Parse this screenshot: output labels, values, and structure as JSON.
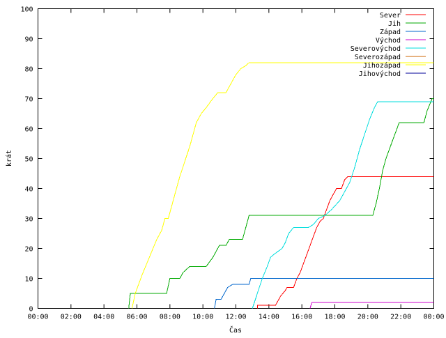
{
  "chart_data": {
    "type": "line",
    "title": "",
    "xlabel": "Čas",
    "ylabel": "krát",
    "xlim": [
      0,
      24
    ],
    "ylim": [
      0,
      100
    ],
    "grid": false,
    "legend_position": "top-right",
    "x_ticks": [
      {
        "value": 0,
        "label": "00:00"
      },
      {
        "value": 2,
        "label": "02:00"
      },
      {
        "value": 4,
        "label": "04:00"
      },
      {
        "value": 6,
        "label": "06:00"
      },
      {
        "value": 8,
        "label": "08:00"
      },
      {
        "value": 10,
        "label": "10:00"
      },
      {
        "value": 12,
        "label": "12:00"
      },
      {
        "value": 14,
        "label": "14:00"
      },
      {
        "value": 16,
        "label": "16:00"
      },
      {
        "value": 18,
        "label": "18:00"
      },
      {
        "value": 20,
        "label": "20:00"
      },
      {
        "value": 22,
        "label": "22:00"
      },
      {
        "value": 24,
        "label": "00:00"
      }
    ],
    "y_ticks": [
      {
        "value": 0,
        "label": "0"
      },
      {
        "value": 10,
        "label": "10"
      },
      {
        "value": 20,
        "label": "20"
      },
      {
        "value": 30,
        "label": "30"
      },
      {
        "value": 40,
        "label": "40"
      },
      {
        "value": 50,
        "label": "50"
      },
      {
        "value": 60,
        "label": "60"
      },
      {
        "value": 70,
        "label": "70"
      },
      {
        "value": 80,
        "label": "80"
      },
      {
        "value": 90,
        "label": "90"
      },
      {
        "value": 100,
        "label": "100"
      }
    ],
    "series": [
      {
        "name": "Sever",
        "color": "#ff0000",
        "points": [
          [
            13.3,
            0
          ],
          [
            13.3,
            1
          ],
          [
            14.4,
            1
          ],
          [
            14.5,
            2
          ],
          [
            14.7,
            4
          ],
          [
            15.0,
            6
          ],
          [
            15.1,
            7
          ],
          [
            15.5,
            7
          ],
          [
            15.7,
            10
          ],
          [
            15.9,
            12
          ],
          [
            16.1,
            15
          ],
          [
            16.3,
            18
          ],
          [
            16.5,
            21
          ],
          [
            16.7,
            24
          ],
          [
            16.9,
            27
          ],
          [
            17.1,
            29
          ],
          [
            17.3,
            30
          ],
          [
            17.5,
            33
          ],
          [
            17.7,
            36
          ],
          [
            17.9,
            38
          ],
          [
            18.1,
            40
          ],
          [
            18.4,
            40
          ],
          [
            18.6,
            43
          ],
          [
            18.8,
            44
          ],
          [
            24,
            44
          ]
        ]
      },
      {
        "name": "Jih",
        "color": "#00aa00",
        "points": [
          [
            5.5,
            0
          ],
          [
            5.6,
            5
          ],
          [
            7.8,
            5
          ],
          [
            8.0,
            10
          ],
          [
            8.6,
            10
          ],
          [
            8.8,
            12
          ],
          [
            9.2,
            14
          ],
          [
            10.2,
            14
          ],
          [
            10.6,
            17
          ],
          [
            10.8,
            19
          ],
          [
            11.0,
            21
          ],
          [
            11.4,
            21
          ],
          [
            11.6,
            23
          ],
          [
            12.4,
            23
          ],
          [
            12.6,
            27
          ],
          [
            12.8,
            31
          ],
          [
            20.3,
            31
          ],
          [
            20.5,
            35
          ],
          [
            20.7,
            40
          ],
          [
            20.9,
            46
          ],
          [
            21.1,
            50
          ],
          [
            21.3,
            53
          ],
          [
            21.5,
            56
          ],
          [
            21.7,
            59
          ],
          [
            21.9,
            62
          ],
          [
            23.4,
            62
          ],
          [
            23.6,
            66
          ],
          [
            23.9,
            70
          ],
          [
            24,
            70
          ]
        ]
      },
      {
        "name": "Západ",
        "color": "#0066cc",
        "points": [
          [
            10.7,
            0
          ],
          [
            10.8,
            3
          ],
          [
            11.1,
            3
          ],
          [
            11.3,
            5
          ],
          [
            11.5,
            7
          ],
          [
            11.8,
            8
          ],
          [
            12.8,
            8
          ],
          [
            12.9,
            10
          ],
          [
            24,
            10
          ]
        ]
      },
      {
        "name": "Východ",
        "color": "#cc00cc",
        "points": [
          [
            16.5,
            0
          ],
          [
            16.6,
            2
          ],
          [
            24,
            2
          ]
        ]
      },
      {
        "name": "Severovýchod",
        "color": "#00dddd",
        "points": [
          [
            13.0,
            0
          ],
          [
            13.3,
            5
          ],
          [
            13.6,
            10
          ],
          [
            13.9,
            14
          ],
          [
            14.1,
            17
          ],
          [
            14.3,
            18
          ],
          [
            14.8,
            20
          ],
          [
            15.0,
            22
          ],
          [
            15.2,
            25
          ],
          [
            15.5,
            27
          ],
          [
            16.4,
            27
          ],
          [
            16.7,
            28
          ],
          [
            17.0,
            30
          ],
          [
            17.4,
            31
          ],
          [
            17.8,
            33
          ],
          [
            18.3,
            36
          ],
          [
            18.6,
            39
          ],
          [
            18.9,
            42
          ],
          [
            19.2,
            47
          ],
          [
            19.5,
            53
          ],
          [
            19.8,
            58
          ],
          [
            20.1,
            63
          ],
          [
            20.4,
            67
          ],
          [
            20.6,
            69
          ],
          [
            24,
            69
          ]
        ]
      },
      {
        "name": "Severozápad",
        "color": "#cc6600",
        "points": []
      },
      {
        "name": "Jihozápad",
        "color": "#ffff00",
        "points": [
          [
            5.7,
            0
          ],
          [
            5.9,
            5
          ],
          [
            6.3,
            11
          ],
          [
            6.6,
            15
          ],
          [
            6.9,
            19
          ],
          [
            7.2,
            23
          ],
          [
            7.5,
            26
          ],
          [
            7.7,
            30
          ],
          [
            7.9,
            30
          ],
          [
            8.1,
            34
          ],
          [
            8.3,
            38
          ],
          [
            8.6,
            44
          ],
          [
            8.9,
            49
          ],
          [
            9.2,
            54
          ],
          [
            9.4,
            58
          ],
          [
            9.6,
            62
          ],
          [
            9.9,
            65
          ],
          [
            10.2,
            67
          ],
          [
            10.6,
            70
          ],
          [
            10.9,
            72
          ],
          [
            11.4,
            72
          ],
          [
            11.7,
            75
          ],
          [
            12.0,
            78
          ],
          [
            12.3,
            80
          ],
          [
            12.6,
            81
          ],
          [
            12.8,
            82
          ],
          [
            24,
            82
          ]
        ]
      },
      {
        "name": "Jihovýchod",
        "color": "#000099",
        "points": []
      }
    ]
  }
}
